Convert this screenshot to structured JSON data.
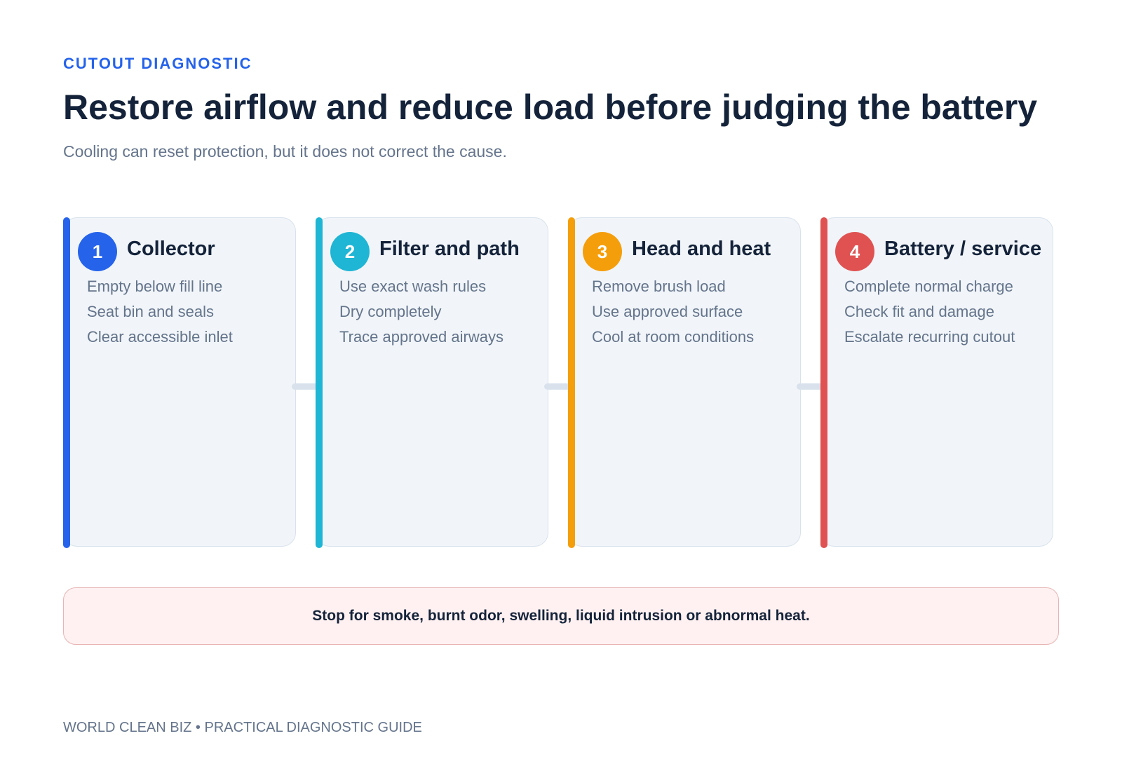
{
  "header": {
    "eyebrow": "CUTOUT DIAGNOSTIC",
    "title": "Restore airflow and reduce load before judging the battery",
    "subtitle": "Cooling can reset protection, but it does not correct the cause."
  },
  "steps": [
    {
      "number": "1",
      "title": "Collector",
      "color": "#2563eb",
      "items": [
        "Empty below fill line",
        "Seat bin and seals",
        "Clear accessible inlet"
      ]
    },
    {
      "number": "2",
      "title": "Filter and path",
      "color": "#1fb5d4",
      "items": [
        "Use exact wash rules",
        "Dry completely",
        "Trace approved airways"
      ]
    },
    {
      "number": "3",
      "title": "Head and heat",
      "color": "#f59e0b",
      "items": [
        "Remove brush load",
        "Use approved surface",
        "Cool at room conditions"
      ]
    },
    {
      "number": "4",
      "title": "Battery / service",
      "color": "#e05252",
      "items": [
        "Complete normal charge",
        "Check fit and damage",
        "Escalate recurring cutout"
      ]
    }
  ],
  "warning": "Stop for smoke, burnt odor, swelling, liquid intrusion or abnormal heat.",
  "footer": "WORLD CLEAN BIZ • PRACTICAL DIAGNOSTIC GUIDE"
}
